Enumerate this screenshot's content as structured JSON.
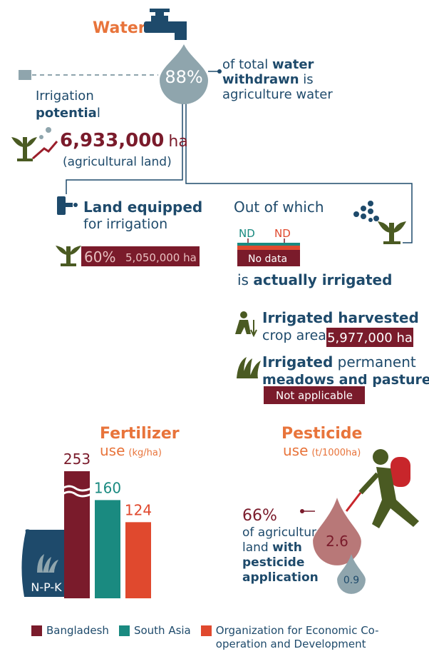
{
  "water": {
    "title": "Water",
    "share": "88%",
    "caption": [
      "of total ",
      "water",
      "withdrawn",
      " is",
      "agriculture water"
    ]
  },
  "irrigation_potential": {
    "label": [
      "Irrigation",
      "potentia",
      "l"
    ],
    "value": "6,933,000",
    "unit": "ha",
    "note": "(agricultural land)"
  },
  "land_equipped": {
    "label": [
      "Land equipped",
      "for irrigation"
    ],
    "share": "60%",
    "area": "5,050,000 ha"
  },
  "actually_irrigated": {
    "heading": "Out of which",
    "markers": [
      "ND",
      "ND"
    ],
    "bar_label": "No data",
    "caption": [
      "is ",
      "actually irrigated"
    ]
  },
  "harvested": {
    "label": [
      "Irrigated harvested",
      "crop area"
    ],
    "value": "5,977,000 ha"
  },
  "meadows": {
    "label": [
      "Irrigated",
      " permanent",
      "meadows and pastures"
    ],
    "value": "Not applicable"
  },
  "fertilizer": {
    "title": "Fertilizer",
    "unit": [
      "use",
      "(kg/ha)"
    ],
    "bag": "N-P-K",
    "series": [
      {
        "name": "Bangladesh",
        "color": "#7a1b2b",
        "value": 253,
        "axis_break": true
      },
      {
        "name": "South Asia",
        "color": "#1a8a80",
        "value": 160
      },
      {
        "name": "Organization for Economic Co-operation and Development",
        "color": "#e0492e",
        "value": 124
      }
    ]
  },
  "pesticide": {
    "title": "Pesticide",
    "unit": [
      "use",
      "(t/1000ha)"
    ],
    "share": "66%",
    "caption": [
      "of agricultural",
      "land ",
      "with",
      "pesticide",
      "application"
    ],
    "values": [
      2.6,
      0.9
    ]
  }
}
